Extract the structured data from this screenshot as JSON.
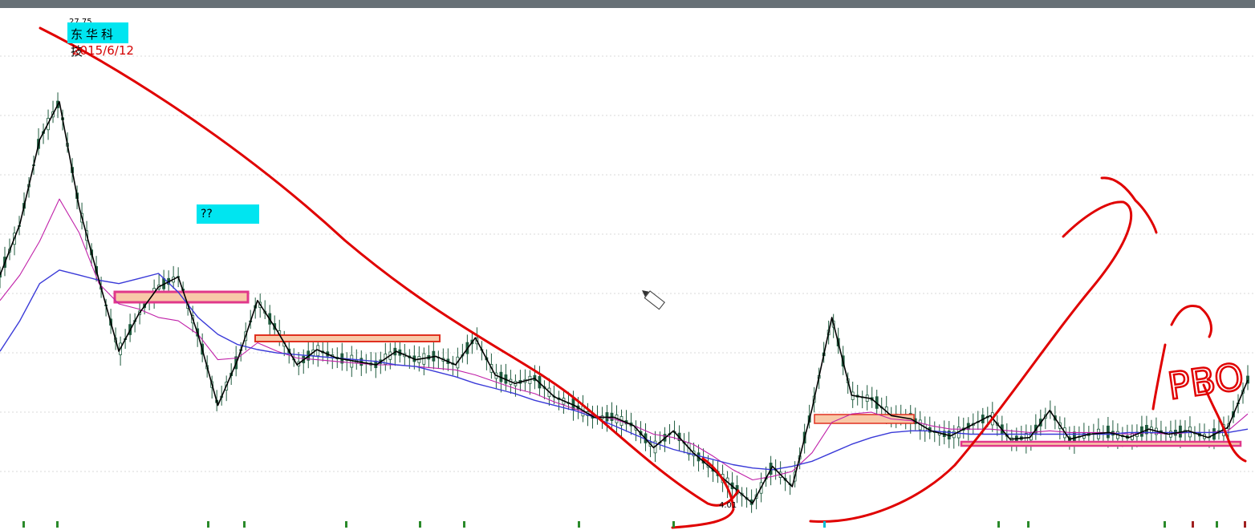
{
  "stock_label": {
    "name": "东华科技",
    "date": "2015/6/12",
    "high_value": "27.75"
  },
  "annotation_box": {
    "text": "??"
  },
  "low_marker": "4.01",
  "handwriting": "PBO",
  "colors": {
    "candle": "#1f5b3e",
    "ma_short": "#c020a8",
    "ma_long": "#3a3ad8",
    "wave": "#000000",
    "trend": "#e00000",
    "highlight_fill": "#f8c9a8",
    "highlight_edge": "#e0388a",
    "label_bg": "#00e5f0",
    "grid": "#d8d8d8"
  },
  "chart_data": {
    "type": "line",
    "title": "",
    "xlabel": "",
    "ylabel": "",
    "series": [
      {
        "values": [
          17.5,
          20.5,
          25.5,
          27.75,
          21.5,
          17.2,
          13.0,
          15.2,
          16.8,
          17.4,
          14.0,
          9.8,
          12.5,
          16.0,
          14.2,
          12.2,
          13.1,
          12.6,
          12.4,
          12.2,
          13.0,
          12.5,
          12.7,
          12.2,
          13.8,
          11.6,
          11.1,
          11.4,
          10.3,
          9.8,
          9.1,
          9.1,
          8.6,
          7.3,
          8.3,
          7.0,
          6.0,
          5.0,
          4.01,
          6.2,
          5.0,
          9.6,
          15.0,
          10.4,
          10.2,
          9.2,
          9.0,
          8.3,
          8.0,
          8.6,
          9.2,
          7.8,
          7.9,
          9.5,
          7.8,
          8.1,
          8.2,
          7.9,
          8.4,
          8.1,
          8.3,
          7.9,
          8.5,
          11.3
        ]
      },
      {
        "values": [
          16.0,
          17.5,
          19.5,
          22.0,
          20.0,
          17.0,
          15.8,
          15.5,
          15.0,
          14.8,
          14.0,
          12.5,
          12.6,
          13.5,
          13.0,
          12.6,
          12.5,
          12.4,
          12.3,
          12.2,
          12.2,
          12.1,
          12.0,
          11.9,
          11.6,
          11.2,
          10.8,
          10.5,
          10.0,
          9.6,
          9.2,
          9.0,
          8.6,
          8.1,
          7.9,
          7.5,
          6.8,
          6.0,
          5.4,
          5.6,
          5.9,
          7.0,
          8.8,
          9.3,
          9.4,
          9.0,
          8.9,
          8.6,
          8.4,
          8.4,
          8.4,
          8.3,
          8.2,
          8.3,
          8.2,
          8.2,
          8.2,
          8.1,
          8.2,
          8.1,
          8.2,
          8.2,
          8.3,
          9.3
        ]
      },
      {
        "values": [
          13.0,
          14.8,
          17.0,
          17.8,
          17.5,
          17.2,
          17.0,
          17.3,
          17.6,
          16.5,
          15.0,
          14.0,
          13.4,
          13.1,
          12.9,
          12.8,
          12.7,
          12.6,
          12.5,
          12.4,
          12.2,
          12.1,
          11.8,
          11.5,
          11.1,
          10.8,
          10.5,
          10.1,
          9.8,
          9.5,
          9.1,
          8.6,
          8.1,
          7.6,
          7.2,
          6.9,
          6.6,
          6.3,
          6.1,
          6.0,
          6.2,
          6.5,
          7.0,
          7.5,
          7.9,
          8.2,
          8.3,
          8.3,
          8.2,
          8.1,
          8.1,
          8.1,
          8.1,
          8.1,
          8.1,
          8.1,
          8.1,
          8.2,
          8.2,
          8.2,
          8.2,
          8.2,
          8.2,
          8.4
        ]
      }
    ]
  }
}
